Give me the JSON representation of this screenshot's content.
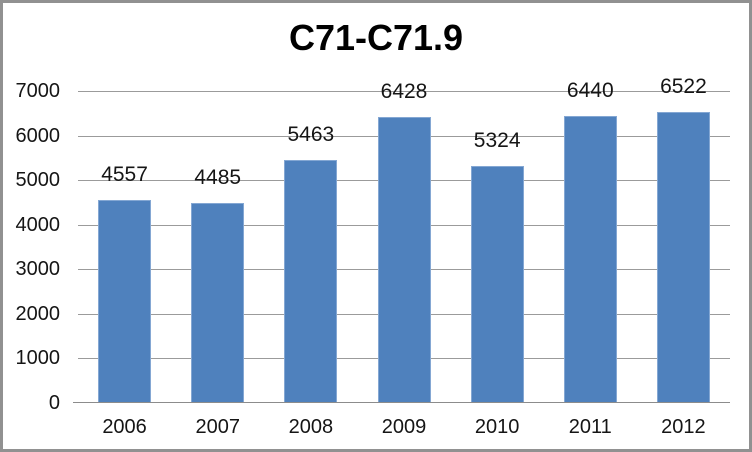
{
  "window": {
    "background": "#ffffff",
    "border_color": "#919191"
  },
  "chart_data": {
    "type": "bar",
    "title": "C71-C71.9",
    "categories": [
      "2006",
      "2007",
      "2008",
      "2009",
      "2010",
      "2011",
      "2012"
    ],
    "values": [
      4557,
      4485,
      5463,
      6428,
      5324,
      6440,
      6522
    ],
    "xlabel": "",
    "ylabel": "",
    "ylim": [
      0,
      7000
    ],
    "y_ticks": [
      0,
      1000,
      2000,
      3000,
      4000,
      5000,
      6000,
      7000
    ],
    "grid": true,
    "legend": "none",
    "data_labels": "outside-end",
    "bar_color": "#4f81bd",
    "bar_edge_color": "#84a7d3",
    "gridline_color": "#9b9b9b",
    "axis_line_color": "#8c8c8c",
    "label_color": "#151515",
    "title_color": "#000000"
  }
}
